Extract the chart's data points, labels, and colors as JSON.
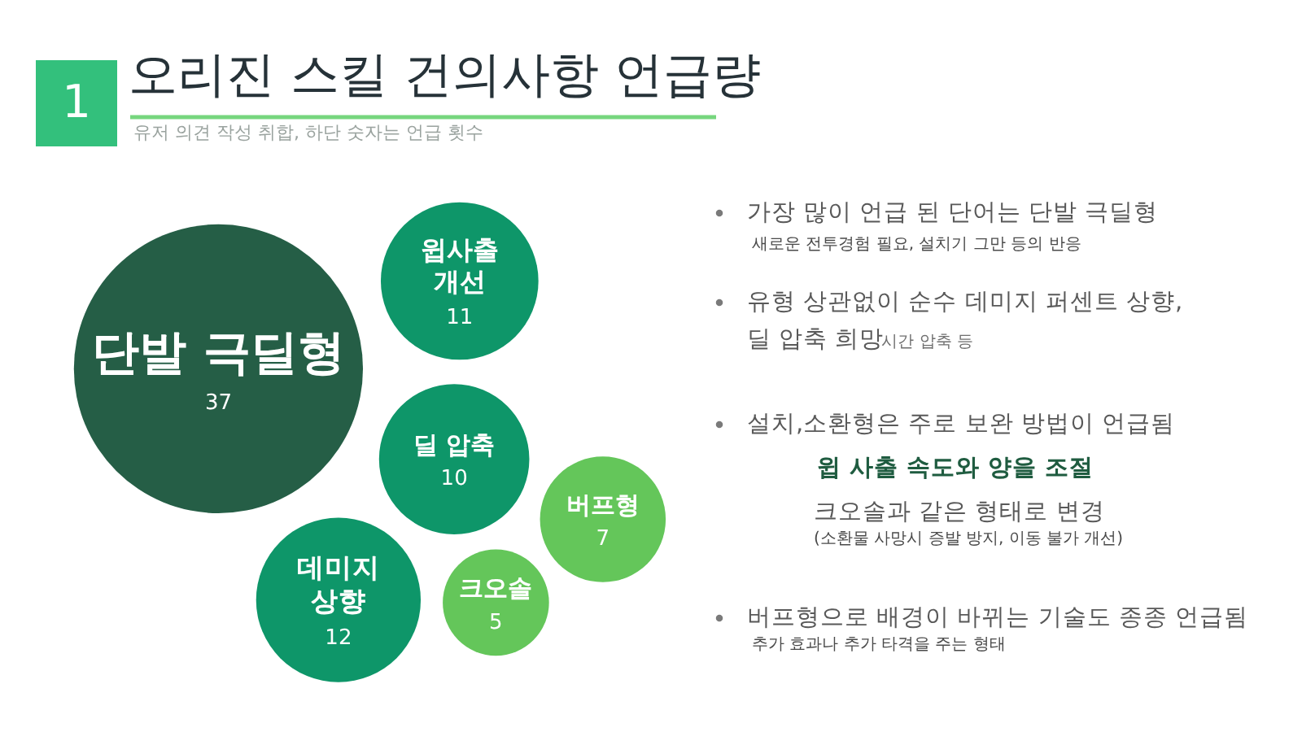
{
  "chart_data": {
    "type": "other",
    "title": "오리진 스킬 건의사항 언급량",
    "subtitle": "유저 의견 작성 취합, 하단 숫자는 언급 횟수",
    "categories": [
      "단발 극딜형",
      "윕사출\n개선",
      "딜 압축",
      "데미지\n상향",
      "크오솔",
      "버프형"
    ],
    "values": [
      37,
      11,
      10,
      12,
      5,
      7
    ],
    "colors": [
      "#255e46",
      "#0e9669",
      "#0e9669",
      "#0e9669",
      "#64c65a",
      "#64c65a"
    ],
    "data_labels": true,
    "annotations": [
      "1",
      "가장 많이 언급 된 단어는 단발 극딜형",
      "새로운 전투경험 필요, 설치기 그만 등의 반응",
      "유형 상관없이 순수 데미지 퍼센트 상향,",
      "딜 압축 희망",
      "시간 압축 등",
      "설치,소환형은 주로 보완 방법이 언급됨",
      "윕 사출 속도와 양을 조절",
      "크오솔과 같은 형태로 변경",
      "(소환물 사망시 증발 방지, 이동 불가 개선)",
      "버프형으로 배경이 바뀌는 기술도 종종 언급됨",
      "추가 효과나 추가 타격을 주는 형태"
    ]
  }
}
